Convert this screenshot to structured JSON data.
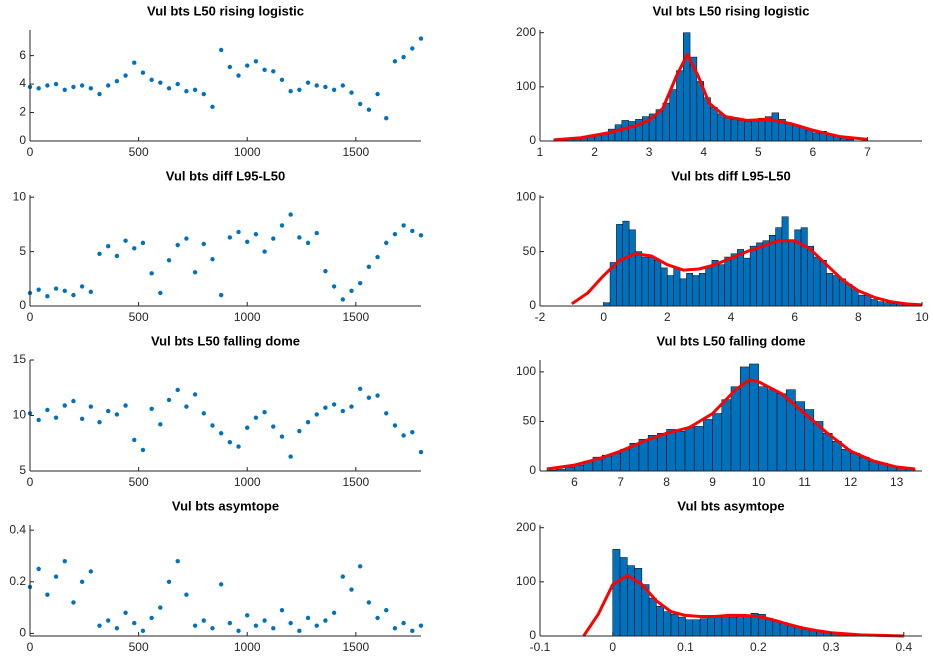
{
  "chart_data": [
    {
      "type": "scatter",
      "title": "Vul bts L50 rising logistic",
      "color": "#0072bd",
      "x": [
        0,
        40,
        80,
        120,
        160,
        200,
        240,
        280,
        320,
        360,
        400,
        440,
        480,
        520,
        560,
        600,
        640,
        680,
        720,
        760,
        800,
        840,
        880,
        920,
        960,
        1000,
        1040,
        1080,
        1120,
        1160,
        1200,
        1240,
        1280,
        1320,
        1360,
        1400,
        1440,
        1480,
        1520,
        1560,
        1600,
        1640,
        1680,
        1720,
        1760,
        1800
      ],
      "values": [
        3.8,
        3.7,
        3.9,
        4.0,
        3.6,
        3.8,
        3.9,
        3.7,
        3.3,
        3.9,
        4.2,
        4.6,
        5.5,
        4.8,
        4.3,
        4.1,
        3.7,
        4.0,
        3.5,
        3.6,
        3.3,
        2.4,
        6.4,
        5.2,
        4.6,
        5.3,
        5.6,
        5.0,
        4.9,
        4.3,
        3.5,
        3.6,
        4.1,
        3.9,
        3.8,
        3.6,
        3.9,
        3.4,
        2.6,
        2.2,
        3.3,
        1.6,
        5.6,
        5.9,
        6.5,
        7.2
      ],
      "xlim": [
        0,
        1800
      ],
      "xticks": [
        0,
        500,
        1000,
        1500
      ],
      "ylim": [
        0,
        7.8
      ],
      "yticks": [
        0,
        2,
        4,
        6
      ]
    },
    {
      "type": "histogram",
      "title": "Vul bts L50 rising logistic",
      "color": "#0072bd",
      "bins": [
        1.25,
        1.375,
        1.5,
        1.625,
        1.75,
        1.875,
        2,
        2.125,
        2.25,
        2.375,
        2.5,
        2.625,
        2.75,
        2.875,
        3,
        3.125,
        3.25,
        3.375,
        3.5,
        3.625,
        3.75,
        3.875,
        4,
        4.125,
        4.25,
        4.375,
        4.5,
        4.625,
        4.75,
        4.875,
        5,
        5.125,
        5.25,
        5.375,
        5.5,
        5.625,
        5.75,
        5.875,
        6,
        6.125,
        6.25,
        6.375,
        6.5,
        6.625,
        6.75
      ],
      "values": [
        2,
        4,
        5,
        6,
        7,
        8,
        12,
        15,
        22,
        30,
        38,
        36,
        40,
        45,
        50,
        58,
        70,
        95,
        130,
        200,
        155,
        110,
        80,
        62,
        50,
        45,
        40,
        38,
        36,
        38,
        42,
        45,
        52,
        40,
        32,
        28,
        25,
        20,
        15,
        18,
        12,
        8,
        5,
        3
      ],
      "fit": {
        "color": "#ff0000",
        "x": [
          1.25,
          1.75,
          2.25,
          2.75,
          3.0,
          3.25,
          3.5,
          3.7,
          3.9,
          4.1,
          4.4,
          4.8,
          5.2,
          5.6,
          6.0,
          6.5,
          7.0
        ],
        "values": [
          2,
          6,
          15,
          28,
          38,
          60,
          120,
          160,
          120,
          70,
          45,
          38,
          40,
          32,
          20,
          8,
          3
        ]
      },
      "xlim": [
        1,
        8
      ],
      "xticks": [
        1,
        2,
        3,
        4,
        5,
        6,
        7
      ],
      "ylim": [
        0,
        205
      ],
      "yticks": [
        0,
        100,
        200
      ]
    },
    {
      "type": "scatter",
      "title": "Vul bts diff L95-L50",
      "color": "#0072bd",
      "x": [
        0,
        40,
        80,
        120,
        160,
        200,
        240,
        280,
        320,
        360,
        400,
        440,
        480,
        520,
        560,
        600,
        640,
        680,
        720,
        760,
        800,
        840,
        880,
        920,
        960,
        1000,
        1040,
        1080,
        1120,
        1160,
        1200,
        1240,
        1280,
        1320,
        1360,
        1400,
        1440,
        1480,
        1520,
        1560,
        1600,
        1640,
        1680,
        1720,
        1760,
        1800
      ],
      "values": [
        1.2,
        1.5,
        0.9,
        1.6,
        1.4,
        1.0,
        1.8,
        1.3,
        4.8,
        5.5,
        4.6,
        6.0,
        5.3,
        5.8,
        3.0,
        1.2,
        4.2,
        5.6,
        6.2,
        3.1,
        5.7,
        4.3,
        1.0,
        6.3,
        6.8,
        5.9,
        6.6,
        5.0,
        6.2,
        7.4,
        8.4,
        6.3,
        5.8,
        6.7,
        3.2,
        1.8,
        0.6,
        1.4,
        2.1,
        3.6,
        4.5,
        5.8,
        6.6,
        7.4,
        6.9,
        6.5
      ],
      "xlim": [
        0,
        1800
      ],
      "xticks": [
        0,
        500,
        1000,
        1500
      ],
      "ylim": [
        0,
        10.2
      ],
      "yticks": [
        0,
        5,
        10
      ]
    },
    {
      "type": "histogram",
      "title": "Vul bts diff L95-L50",
      "color": "#0072bd",
      "bins": [
        0,
        0.2,
        0.4,
        0.6,
        0.8,
        1,
        1.2,
        1.4,
        1.6,
        1.8,
        2,
        2.2,
        2.4,
        2.6,
        2.8,
        3,
        3.2,
        3.4,
        3.6,
        3.8,
        4,
        4.2,
        4.4,
        4.6,
        4.8,
        5,
        5.2,
        5.4,
        5.6,
        5.8,
        6,
        6.2,
        6.4,
        6.6,
        6.8,
        7,
        7.2,
        7.4,
        7.6,
        7.8,
        8,
        8.2,
        8.4,
        8.6,
        8.8,
        9,
        9.2,
        9.4,
        9.6,
        9.8
      ],
      "values": [
        3,
        40,
        75,
        78,
        70,
        50,
        45,
        45,
        42,
        35,
        28,
        35,
        25,
        30,
        28,
        30,
        35,
        42,
        38,
        45,
        48,
        52,
        44,
        55,
        58,
        60,
        65,
        72,
        82,
        60,
        70,
        72,
        55,
        45,
        42,
        30,
        28,
        25,
        20,
        15,
        10,
        10,
        6,
        4,
        3,
        2,
        2,
        1,
        1
      ],
      "fit": {
        "color": "#ff0000",
        "x": [
          -1,
          -0.5,
          0,
          0.5,
          1,
          1.5,
          2,
          2.5,
          3,
          3.5,
          4,
          4.5,
          5,
          5.5,
          6,
          6.5,
          7,
          7.5,
          8,
          8.5,
          9,
          9.5,
          10
        ],
        "values": [
          2,
          12,
          28,
          42,
          48,
          46,
          38,
          33,
          34,
          38,
          44,
          50,
          55,
          60,
          60,
          52,
          38,
          24,
          14,
          8,
          4,
          2,
          1
        ]
      },
      "xlim": [
        -2,
        10
      ],
      "xticks": [
        -2,
        0,
        2,
        4,
        6,
        8,
        10
      ],
      "ylim": [
        0,
        102
      ],
      "yticks": [
        0,
        50,
        100
      ]
    },
    {
      "type": "scatter",
      "title": "Vul bts L50 falling dome",
      "color": "#0072bd",
      "x": [
        0,
        40,
        80,
        120,
        160,
        200,
        240,
        280,
        320,
        360,
        400,
        440,
        480,
        520,
        560,
        600,
        640,
        680,
        720,
        760,
        800,
        840,
        880,
        920,
        960,
        1000,
        1040,
        1080,
        1120,
        1160,
        1200,
        1240,
        1280,
        1320,
        1360,
        1400,
        1440,
        1480,
        1520,
        1560,
        1600,
        1640,
        1680,
        1720,
        1760,
        1800
      ],
      "values": [
        10.2,
        9.6,
        10.5,
        9.8,
        10.9,
        11.3,
        9.7,
        10.8,
        9.4,
        10.4,
        10.1,
        10.9,
        7.8,
        6.9,
        10.6,
        9.2,
        11.4,
        12.3,
        10.8,
        11.9,
        10.2,
        9.1,
        8.4,
        7.6,
        7.2,
        8.9,
        9.8,
        10.3,
        9.0,
        8.1,
        6.3,
        8.6,
        9.4,
        10.1,
        10.7,
        11.0,
        10.4,
        10.8,
        12.4,
        11.6,
        11.8,
        10.2,
        9.1,
        8.2,
        8.5,
        6.7
      ],
      "xlim": [
        0,
        1800
      ],
      "xticks": [
        0,
        500,
        1000,
        1500
      ],
      "ylim": [
        5,
        15
      ],
      "yticks": [
        5,
        10,
        15
      ]
    },
    {
      "type": "histogram",
      "title": "Vul bts L50 falling dome",
      "color": "#0072bd",
      "bins": [
        5.4,
        5.6,
        5.8,
        6,
        6.2,
        6.4,
        6.6,
        6.8,
        7,
        7.2,
        7.4,
        7.6,
        7.8,
        8,
        8.2,
        8.4,
        8.6,
        8.8,
        9,
        9.2,
        9.4,
        9.6,
        9.8,
        10,
        10.2,
        10.4,
        10.6,
        10.8,
        11,
        11.2,
        11.4,
        11.6,
        11.8,
        12,
        12.2,
        12.4,
        12.6,
        12.8,
        13,
        13.2,
        13.4
      ],
      "values": [
        1,
        2,
        4,
        6,
        10,
        14,
        16,
        18,
        22,
        28,
        32,
        36,
        38,
        42,
        40,
        44,
        45,
        52,
        58,
        72,
        85,
        105,
        108,
        85,
        82,
        78,
        82,
        70,
        62,
        50,
        38,
        30,
        22,
        18,
        14,
        10,
        8,
        5,
        3,
        2
      ],
      "fit": {
        "color": "#ff0000",
        "x": [
          5.4,
          6,
          6.5,
          7,
          7.5,
          8,
          8.5,
          9,
          9.5,
          9.8,
          10,
          10.5,
          11,
          11.5,
          12,
          12.5,
          13,
          13.4
        ],
        "values": [
          2,
          6,
          12,
          20,
          30,
          38,
          44,
          58,
          82,
          92,
          90,
          78,
          58,
          38,
          20,
          10,
          4,
          2
        ]
      },
      "xlim": [
        5.25,
        13.55
      ],
      "xticks": [
        6,
        7,
        8,
        9,
        10,
        11,
        12,
        13
      ],
      "ylim": [
        0,
        112
      ],
      "yticks": [
        0,
        50,
        100
      ]
    },
    {
      "type": "scatter",
      "title": "Vul bts asymtope",
      "color": "#0072bd",
      "x": [
        0,
        40,
        80,
        120,
        160,
        200,
        240,
        280,
        320,
        360,
        400,
        440,
        480,
        520,
        560,
        600,
        640,
        680,
        720,
        760,
        800,
        840,
        880,
        920,
        960,
        1000,
        1040,
        1080,
        1120,
        1160,
        1200,
        1240,
        1280,
        1320,
        1360,
        1400,
        1440,
        1480,
        1520,
        1560,
        1600,
        1640,
        1680,
        1720,
        1760,
        1800
      ],
      "values": [
        0.18,
        0.25,
        0.15,
        0.22,
        0.28,
        0.12,
        0.2,
        0.24,
        0.03,
        0.05,
        0.02,
        0.08,
        0.04,
        0.01,
        0.06,
        0.1,
        0.2,
        0.28,
        0.15,
        0.03,
        0.05,
        0.02,
        0.19,
        0.04,
        0.01,
        0.07,
        0.03,
        0.05,
        0.02,
        0.09,
        0.04,
        0.01,
        0.06,
        0.03,
        0.05,
        0.08,
        0.22,
        0.17,
        0.26,
        0.12,
        0.06,
        0.09,
        0.02,
        0.04,
        0.01,
        0.03
      ],
      "xlim": [
        0,
        1800
      ],
      "xticks": [
        0,
        500,
        1000,
        1500
      ],
      "ylim": [
        -0.01,
        0.42
      ],
      "yticks": [
        0,
        0.2,
        0.4
      ]
    },
    {
      "type": "histogram",
      "title": "Vul bts asymtope",
      "color": "#0072bd",
      "bins": [
        0,
        0.01,
        0.02,
        0.03,
        0.04,
        0.05,
        0.06,
        0.07,
        0.08,
        0.09,
        0.1,
        0.11,
        0.12,
        0.13,
        0.14,
        0.15,
        0.16,
        0.17,
        0.18,
        0.19,
        0.2,
        0.21,
        0.22,
        0.23,
        0.24,
        0.25,
        0.26,
        0.27,
        0.28,
        0.29,
        0.3,
        0.31,
        0.32,
        0.33,
        0.34,
        0.35,
        0.36,
        0.37,
        0.38,
        0.39,
        0.4
      ],
      "values": [
        160,
        145,
        130,
        125,
        95,
        70,
        55,
        45,
        40,
        35,
        30,
        30,
        32,
        35,
        35,
        38,
        35,
        40,
        38,
        42,
        40,
        32,
        28,
        25,
        20,
        18,
        14,
        12,
        10,
        8,
        6,
        5,
        4,
        3,
        2,
        2,
        1,
        1,
        1,
        1
      ],
      "fit": {
        "color": "#ff0000",
        "x": [
          -0.04,
          -0.02,
          0,
          0.02,
          0.04,
          0.06,
          0.08,
          0.1,
          0.12,
          0.14,
          0.16,
          0.18,
          0.2,
          0.22,
          0.24,
          0.26,
          0.28,
          0.3,
          0.34,
          0.4
        ],
        "values": [
          0,
          40,
          95,
          112,
          95,
          65,
          45,
          38,
          36,
          36,
          38,
          38,
          36,
          30,
          22,
          15,
          10,
          6,
          2,
          0
        ]
      },
      "xlim": [
        -0.1,
        0.425
      ],
      "xticks": [
        -0.1,
        0,
        0.1,
        0.2,
        0.3,
        0.4
      ],
      "ylim": [
        0,
        205
      ],
      "yticks": [
        0,
        100,
        200
      ]
    }
  ]
}
